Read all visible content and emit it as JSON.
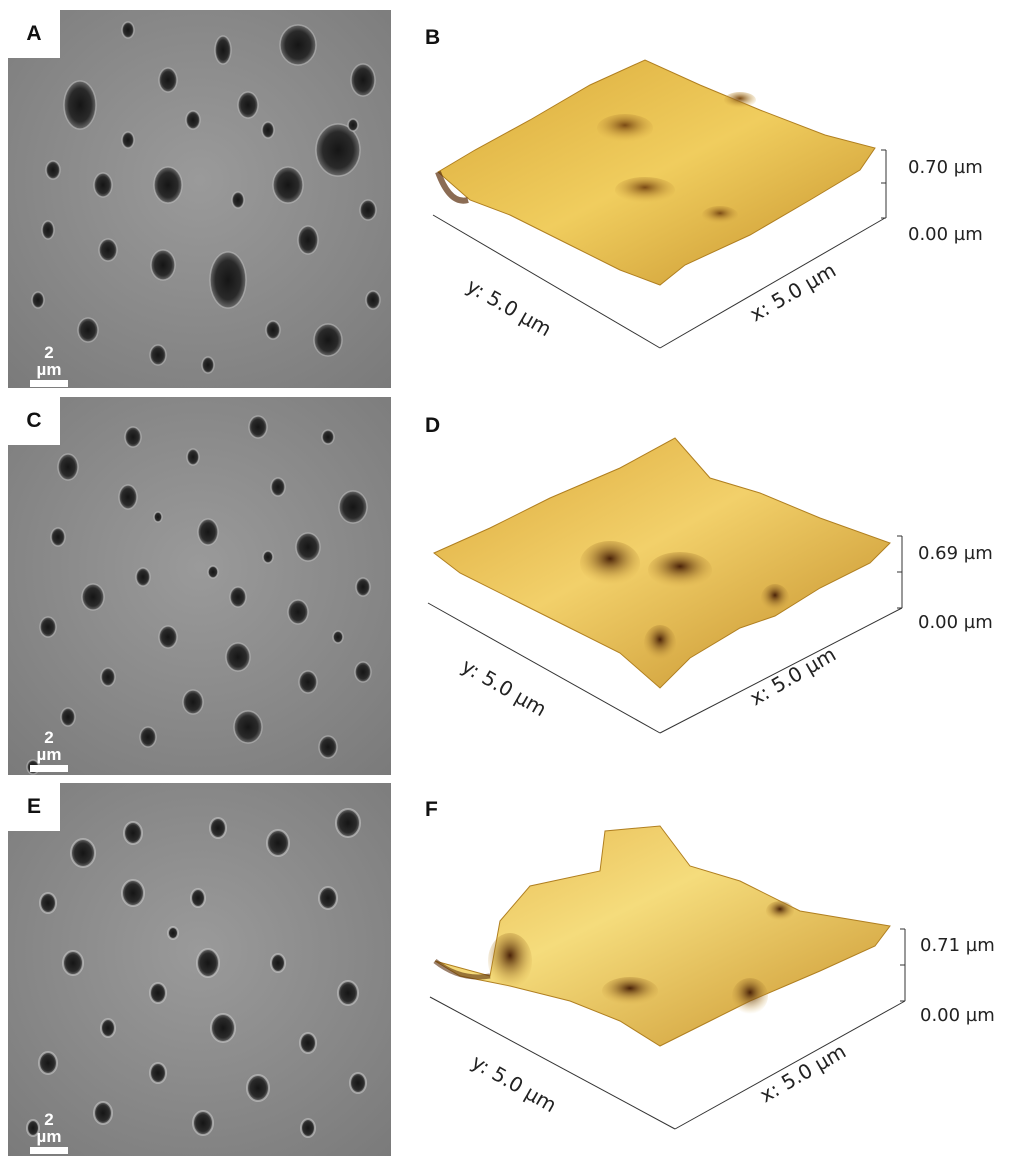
{
  "panels": [
    {
      "letter": "A",
      "scale_bar": "2 µm"
    },
    {
      "letter": "B",
      "z_max": "0.70 µm",
      "z_min": "0.00 µm",
      "y_axis": "y: 5.0 µm",
      "x_axis": "x: 5.0 µm"
    },
    {
      "letter": "C",
      "scale_bar": "2 µm"
    },
    {
      "letter": "D",
      "z_max": "0.69 µm",
      "z_min": "0.00 µm",
      "y_axis": "y: 5.0 µm",
      "x_axis": "x: 5.0 µm"
    },
    {
      "letter": "E",
      "scale_bar": "2 µm"
    },
    {
      "letter": "F",
      "z_max": "0.71 µm",
      "z_min": "0.00 µm",
      "y_axis": "y: 5.0 µm",
      "x_axis": "x: 5.0 µm"
    }
  ],
  "colors": {
    "sem_background": "#8c8c8c",
    "pore": "#1e1e1e",
    "afm_high": "#f2d36a",
    "afm_low": "#5a2e0c"
  }
}
